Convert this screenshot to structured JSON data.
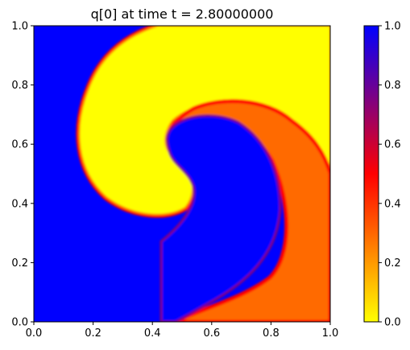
{
  "chart_data": {
    "type": "heatmap",
    "title": "q[0] at time t =     2.80000000",
    "xlabel": "",
    "ylabel": "",
    "xlim": [
      0.0,
      1.0
    ],
    "ylim": [
      0.0,
      1.0
    ],
    "xticks": [
      "0.0",
      "0.2",
      "0.4",
      "0.6",
      "0.8",
      "1.0"
    ],
    "yticks": [
      "0.0",
      "0.2",
      "0.4",
      "0.6",
      "0.8",
      "1.0"
    ],
    "colorbar": {
      "range": [
        0.0,
        1.0
      ],
      "ticks": [
        "0.0",
        "0.2",
        "0.4",
        "0.6",
        "0.8",
        "1.0"
      ],
      "colormap": [
        "#ffff00",
        "#ff8000",
        "#ff0000",
        "#800080",
        "#0000ff"
      ]
    },
    "grid": false,
    "regions": [
      {
        "name": "blue",
        "value": 1.0,
        "color": "#0000ff"
      },
      {
        "name": "yellow",
        "value": 0.0,
        "color": "#ffff00"
      },
      {
        "name": "orange",
        "value": 0.25,
        "color": "#ff6a00"
      }
    ]
  }
}
